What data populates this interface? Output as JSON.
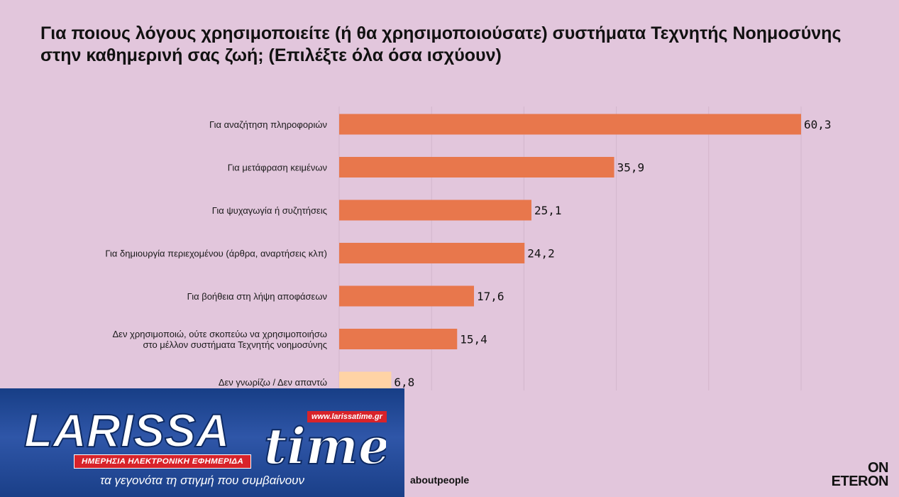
{
  "title": "Για ποιους λόγους χρησιμοποιείτε (ή θα χρησιμοποιούσατε) συστήματα Τεχνητής Νοημοσύνης στην καθημερινή σας ζωή; (Επιλέξτε όλα όσα ισχύουν)",
  "chart_data": {
    "type": "bar",
    "orientation": "horizontal",
    "categories": [
      "Για αναζήτηση πληροφοριών",
      "Για μετάφραση κειμένων",
      "Για ψυχαγωγία ή συζητήσεις",
      "Για δημιουργία περιεχομένου (άρθρα, αναρτήσεις κλπ)",
      "Για βοήθεια στη λήψη αποφάσεων",
      "Δεν χρησιμοποιώ, ούτε σκοπεύω να χρησιμοποιήσω στο μέλλον συστήματα Τεχνητής νοημοσύνης",
      "Δεν γνωρίζω / Δεν απαντώ"
    ],
    "category_lines": [
      [
        "Για αναζήτηση πληροφοριών"
      ],
      [
        "Για μετάφραση κειμένων"
      ],
      [
        "Για ψυχαγωγία ή συζητήσεις"
      ],
      [
        "Για δημιουργία περιεχομένου (άρθρα, αναρτήσεις κλπ)"
      ],
      [
        "Για βοήθεια στη λήψη αποφάσεων"
      ],
      [
        "Δεν χρησιμοποιώ, ούτε σκοπεύω να χρησιμοποιήσω",
        "στο μέλλον συστήματα Τεχνητής νοημοσύνης"
      ],
      [
        "Δεν γνωρίζω / Δεν απαντώ"
      ]
    ],
    "values": [
      60.3,
      35.9,
      25.1,
      24.2,
      17.6,
      15.4,
      6.8
    ],
    "value_labels": [
      "60,3",
      "35,9",
      "25,1",
      "24,2",
      "17,6",
      "15,4",
      "6,8"
    ],
    "bar_colors": [
      "#e8774c",
      "#e8774c",
      "#e8774c",
      "#e8774c",
      "#e8774c",
      "#e8774c",
      "#ffd3a5"
    ],
    "xlim": [
      0,
      60.3
    ],
    "grid": true
  },
  "banner": {
    "brand": "LARISSA",
    "brand_script": "time",
    "url": "www.larissatime.gr",
    "tagline": "ΗΜΕΡΗΣΙΑ ΗΛΕΚΤΡΟΝΙΚΗ ΕΦΗΜΕΡΙΔΑ",
    "subtitle": "τα γεγονότα τη στιγμή που συμβαίνουν"
  },
  "footer": {
    "source": "aboutpeople",
    "logo_line1": "ON",
    "logo_line2": "ETERON"
  },
  "colors": {
    "background": "#e2c6dc",
    "bar": "#e8774c",
    "bar_light": "#ffd3a5",
    "banner_blue": "#1f4894",
    "banner_red": "#d8232a"
  }
}
